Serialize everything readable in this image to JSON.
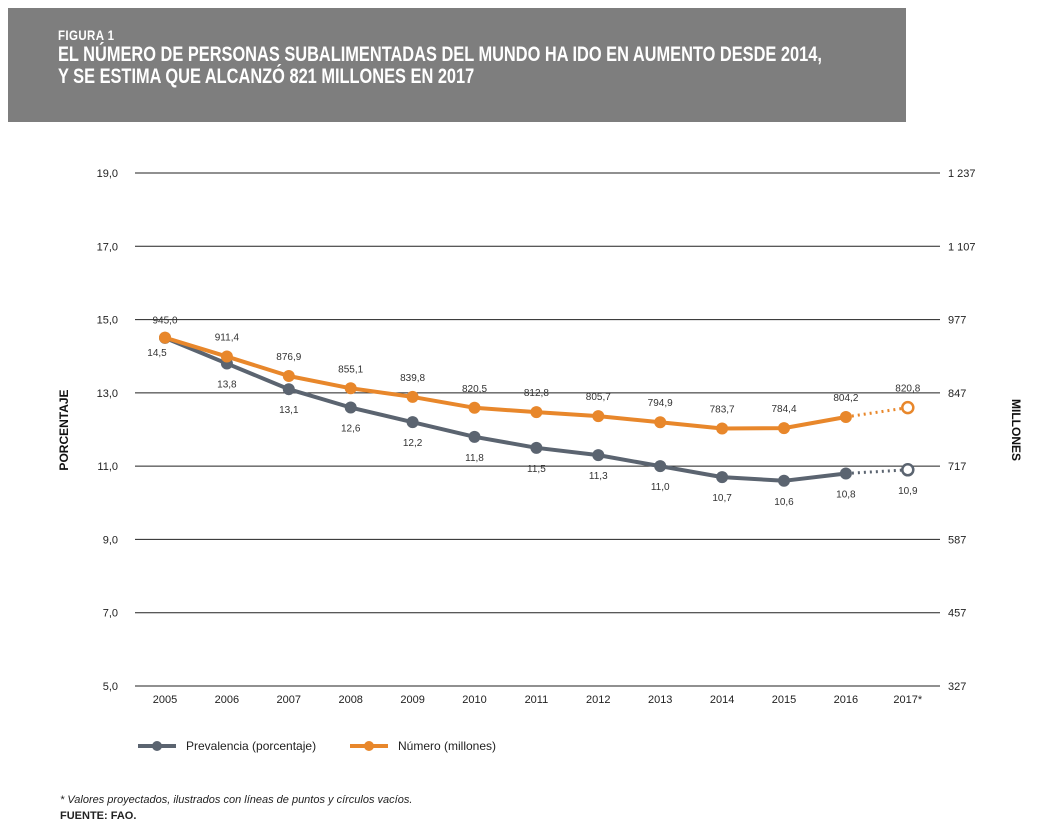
{
  "figure_label": "FIGURA 1",
  "title_lines": [
    "EL NÚMERO DE PERSONAS SUBALIMENTADAS DEL MUNDO HA IDO EN AUMENTO DESDE 2014,",
    "Y SE ESTIMA QUE ALCANZÓ 821 MILLONES EN 2017"
  ],
  "footnote": "* Valores proyectados, ilustrados con líneas de puntos y círculos vacíos.",
  "source": "FUENTE: FAO.",
  "colors": {
    "prevalence": "#5b6470",
    "number": "#e8872b",
    "grid": "#222222",
    "banner": "#7e7e7e"
  },
  "chart_data": {
    "type": "line",
    "categories": [
      "2005",
      "2006",
      "2007",
      "2008",
      "2009",
      "2010",
      "2011",
      "2012",
      "2013",
      "2014",
      "2015",
      "2016",
      "2017*"
    ],
    "ylabel_left": "PORCENTAJE",
    "ylabel_right": "MILLONES",
    "left_ticks": [
      "19,0",
      "17,0",
      "15,0",
      "13,0",
      "11,0",
      "9,0",
      "7,0",
      "5,0"
    ],
    "right_ticks": [
      "1 237",
      "1 107",
      "977",
      "847",
      "717",
      "587",
      "457",
      "327"
    ],
    "ylim_left": [
      5,
      19
    ],
    "ylim_right": [
      327,
      1237
    ],
    "grid": true,
    "legend_position": "bottom-left",
    "series": [
      {
        "name": "Prevalencia (porcentaje)",
        "axis": "left",
        "values": [
          14.5,
          13.8,
          13.1,
          12.6,
          12.2,
          11.8,
          11.5,
          11.3,
          11.0,
          10.7,
          10.6,
          10.8,
          10.9
        ],
        "labels": [
          "14,5",
          "13,8",
          "13,1",
          "12,6",
          "12,2",
          "11,8",
          "11,5",
          "11,3",
          "11,0",
          "10,7",
          "10,6",
          "10,8",
          "10,9"
        ],
        "projected_from_index": 11
      },
      {
        "name": "Número (millones)",
        "axis": "right",
        "values": [
          945.0,
          911.4,
          876.9,
          855.1,
          839.8,
          820.5,
          812.8,
          805.7,
          794.9,
          783.7,
          784.4,
          804.2,
          820.8
        ],
        "labels": [
          "945,0",
          "911,4",
          "876,9",
          "855,1",
          "839,8",
          "820,5",
          "812,8",
          "805,7",
          "794,9",
          "783,7",
          "784,4",
          "804,2",
          "820,8"
        ],
        "projected_from_index": 11
      }
    ]
  }
}
